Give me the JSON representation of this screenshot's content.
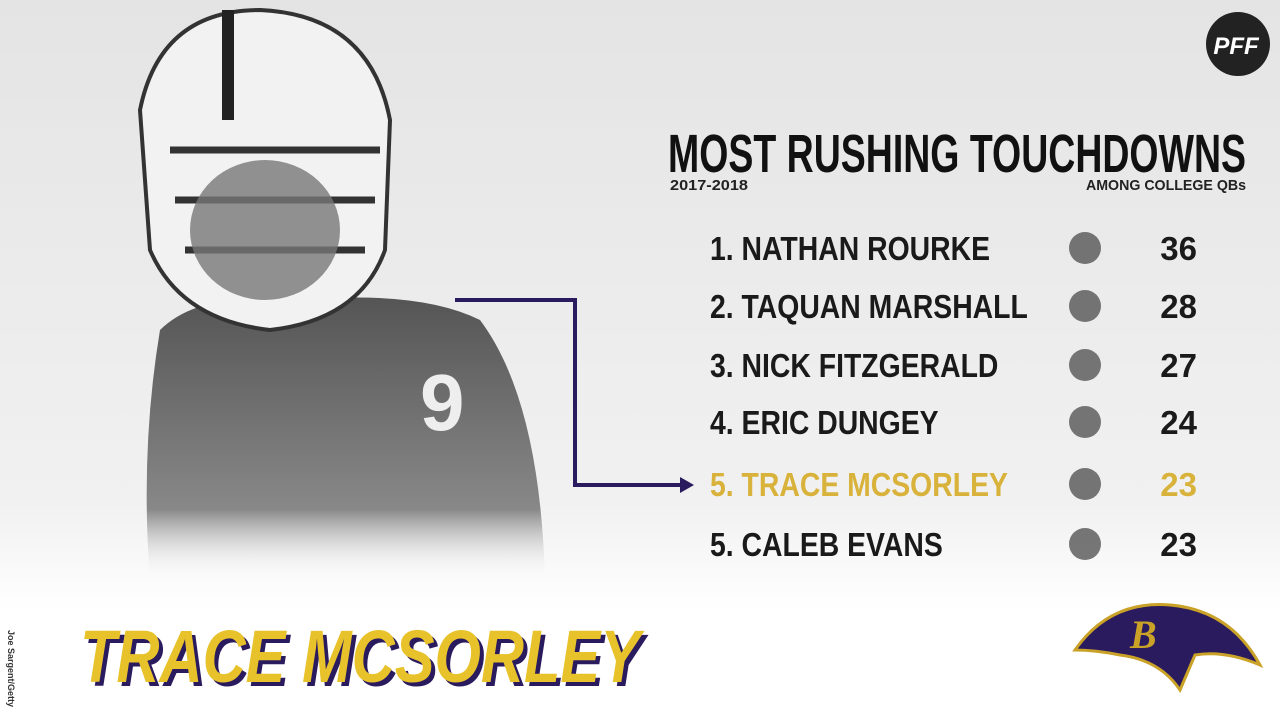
{
  "logo": "PFF",
  "title": "MOST RUSHING TOUCHDOWNS",
  "period": "2017-2018",
  "scope": "AMONG COLLEGE QBs",
  "rows": [
    {
      "player": "1. NATHAN ROURKE",
      "value": 36
    },
    {
      "player": "2. TAQUAN MARSHALL",
      "value": 28
    },
    {
      "player": "3. NICK FITZGERALD",
      "value": 27
    },
    {
      "player": "4. ERIC DUNGEY",
      "value": 24
    },
    {
      "player": "5. TRACE MCSORLEY",
      "value": 23,
      "highlight": true
    },
    {
      "player": "5. CALEB EVANS",
      "value": 23
    }
  ],
  "featured": "TRACE MCSORLEY",
  "credit": "Joe Sargent/Getty"
}
